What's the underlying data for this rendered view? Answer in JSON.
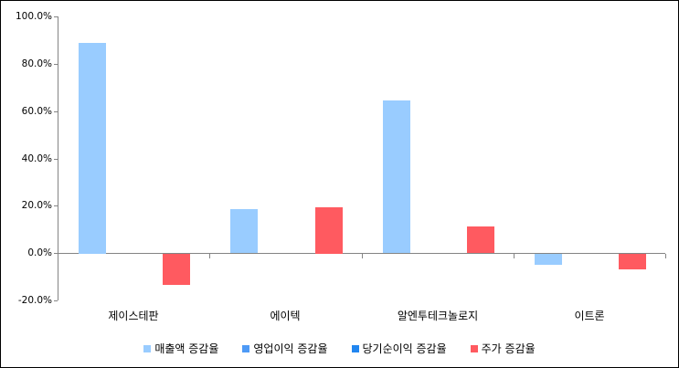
{
  "chart_data": {
    "type": "bar",
    "title": "",
    "xlabel": "",
    "ylabel": "",
    "categories": [
      "제이스테판",
      "에이텍",
      "알엔투테크놀로지",
      "이트론"
    ],
    "series": [
      {
        "name": "매출액 증감율",
        "color": "#99CCFF",
        "values": [
          89.0,
          18.7,
          64.6,
          -4.8
        ]
      },
      {
        "name": "영업이익 증감율",
        "color": "#4E9AF6",
        "values": [
          0,
          0,
          0,
          0
        ]
      },
      {
        "name": "당기순이익 증감율",
        "color": "#2186F0",
        "values": [
          0,
          0,
          0,
          0
        ]
      },
      {
        "name": "주가 증감율",
        "color": "#FF5A60",
        "values": [
          -13.3,
          19.5,
          11.3,
          -6.7
        ]
      }
    ],
    "ylim": [
      -20,
      100
    ],
    "ytick_step": 20,
    "yticks": [
      100,
      80,
      60,
      40,
      20,
      0,
      -20
    ],
    "ytick_labels": [
      "100.0%",
      "80.0%",
      "60.0%",
      "40.0%",
      "20.0%",
      "0.0%",
      "-20.0%"
    ],
    "grid": false,
    "legend_position": "bottom",
    "colors": {
      "axis": "#848484",
      "text": "#000000",
      "background": "#ffffff",
      "border": "#000000"
    }
  }
}
